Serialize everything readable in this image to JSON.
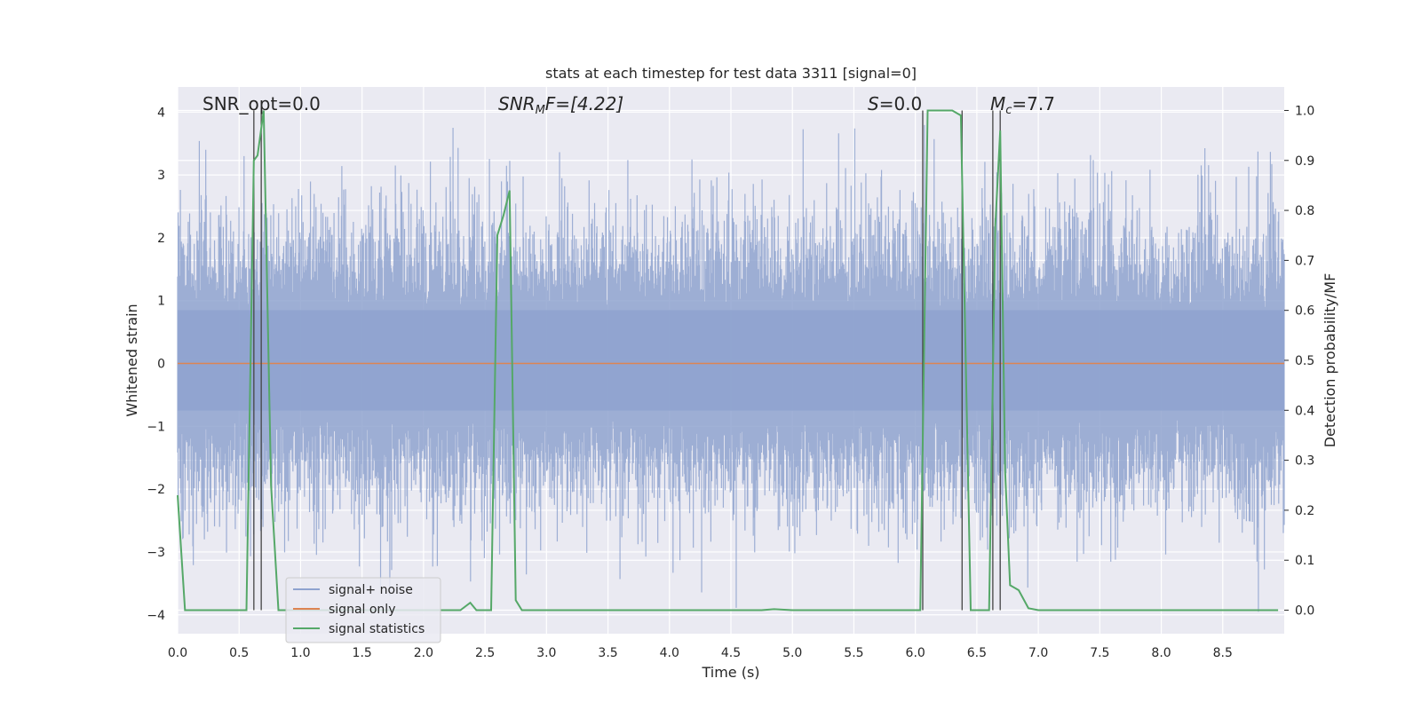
{
  "chart_data": {
    "type": "line",
    "title": "stats at each timestep for test data 3311 [signal=0]",
    "xlabel": "Time (s)",
    "ylabel": "Whitened strain",
    "ylabel_right": "Detection probability/MF",
    "xlim": [
      0.0,
      9.0
    ],
    "ylim": [
      -4.3,
      4.4
    ],
    "ylim_right": [
      -0.047,
      1.047
    ],
    "x_ticks": [
      "0.0",
      "0.5",
      "1.0",
      "1.5",
      "2.0",
      "2.5",
      "3.0",
      "3.5",
      "4.0",
      "4.5",
      "5.0",
      "5.5",
      "6.0",
      "6.5",
      "7.0",
      "7.5",
      "8.0",
      "8.5"
    ],
    "y_ticks": [
      "−4",
      "−3",
      "−2",
      "−1",
      "0",
      "1",
      "2",
      "3",
      "4"
    ],
    "y_ticks_right": [
      "0.0",
      "0.1",
      "0.2",
      "0.3",
      "0.4",
      "0.5",
      "0.6",
      "0.7",
      "0.8",
      "0.9",
      "1.0"
    ],
    "grid": true,
    "legend": {
      "position": "lower-left",
      "entries": [
        "signal+ noise",
        "signal only",
        "signal statistics"
      ]
    },
    "annotations": {
      "snr_opt": "SNR_opt=0.0",
      "snr_mf_main": "SNR",
      "snr_mf_sub": "M",
      "snr_mf_rest": "F=[4.22]",
      "s_var": "S",
      "s_rest": "=0.0",
      "mc_var": "M",
      "mc_sub": "c",
      "mc_rest": "=7.7"
    },
    "series": [
      {
        "name": "signal+ noise",
        "axis": "left",
        "color": "#8fa3cf",
        "description": "whitened noise, sampled to display",
        "noise_sigma": 1.0,
        "duration_s": 9.0
      },
      {
        "name": "signal only",
        "axis": "left",
        "color": "#dd8452",
        "x": [
          0.0,
          9.0
        ],
        "y": [
          0.0,
          0.0
        ]
      },
      {
        "name": "signal statistics",
        "axis": "right",
        "color": "#55a868",
        "x": [
          0.0,
          0.06,
          0.1,
          0.3,
          0.45,
          0.56,
          0.62,
          0.65,
          0.7,
          0.76,
          0.82,
          1.0,
          2.0,
          2.3,
          2.38,
          2.43,
          2.55,
          2.6,
          2.65,
          2.7,
          2.75,
          2.8,
          2.9,
          4.0,
          4.75,
          4.85,
          5.0,
          5.5,
          6.04,
          6.1,
          6.3,
          6.37,
          6.45,
          6.55,
          6.6,
          6.65,
          6.69,
          6.73,
          6.77,
          6.84,
          6.92,
          7.0,
          8.0,
          8.95
        ],
        "y": [
          0.23,
          0.0,
          0.0,
          0.0,
          0.0,
          0.0,
          0.9,
          0.91,
          1.0,
          0.25,
          0.0,
          0.0,
          0.0,
          0.0,
          0.015,
          0.0,
          0.0,
          0.75,
          0.79,
          0.84,
          0.02,
          0.0,
          0.0,
          0.0,
          0.0,
          0.002,
          0.0,
          0.0,
          0.0,
          1.0,
          1.0,
          0.99,
          0.0,
          0.0,
          0.0,
          0.77,
          0.96,
          0.28,
          0.05,
          0.04,
          0.004,
          0.0,
          0.0,
          0.0
        ]
      }
    ],
    "vertical_markers_x": [
      0.62,
      0.68,
      6.06,
      6.38,
      6.63,
      6.69
    ]
  }
}
